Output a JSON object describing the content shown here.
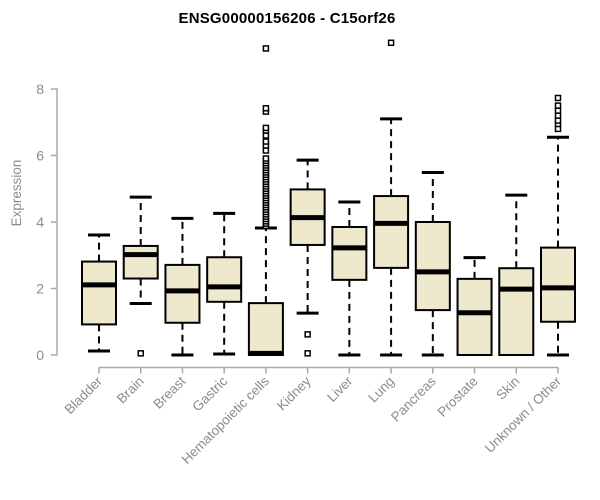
{
  "chart_data": {
    "type": "boxplot",
    "title": "ENSG00000156206 - C15orf26",
    "xlabel": "",
    "ylabel": "Expression",
    "ylim": [
      0,
      9.6
    ],
    "yticks": [
      0,
      2,
      4,
      6,
      8
    ],
    "grid": false,
    "legend": "none",
    "categories": [
      "Bladder",
      "Brain",
      "Breast",
      "Gastric",
      "Hematopoietic cells",
      "Kidney",
      "Liver",
      "Lung",
      "Pancreas",
      "Prostate",
      "Skin",
      "Unknown / Other"
    ],
    "series": [
      {
        "name": "Bladder",
        "whisker_low": 0.12,
        "q1": 0.92,
        "median": 2.11,
        "q3": 2.81,
        "whisker_high": 3.61,
        "outliers": []
      },
      {
        "name": "Brain",
        "whisker_low": 1.55,
        "q1": 2.3,
        "median": 3.02,
        "q3": 3.28,
        "whisker_high": 4.75,
        "outliers": [
          0.05
        ]
      },
      {
        "name": "Breast",
        "whisker_low": 0.0,
        "q1": 0.97,
        "median": 1.93,
        "q3": 2.71,
        "whisker_high": 4.11,
        "outliers": []
      },
      {
        "name": "Gastric",
        "whisker_low": 0.03,
        "q1": 1.6,
        "median": 2.05,
        "q3": 2.94,
        "whisker_high": 4.26,
        "outliers": []
      },
      {
        "name": "Hematopoietic cells",
        "whisker_low": 0.0,
        "q1": 0.0,
        "median": 0.05,
        "q3": 1.56,
        "whisker_high": 3.82,
        "outliers": [
          3.88,
          3.95,
          4.02,
          4.09,
          4.16,
          4.23,
          4.3,
          4.37,
          4.44,
          4.51,
          4.58,
          4.65,
          4.72,
          4.79,
          4.86,
          4.93,
          5.0,
          5.07,
          5.14,
          5.21,
          5.28,
          5.35,
          5.42,
          5.49,
          5.56,
          5.63,
          5.7,
          5.77,
          5.84,
          5.91,
          6.15,
          6.3,
          6.42,
          6.6,
          6.75,
          6.83,
          7.32,
          7.42,
          9.22
        ]
      },
      {
        "name": "Kidney",
        "whisker_low": 1.26,
        "q1": 3.31,
        "median": 4.13,
        "q3": 4.98,
        "whisker_high": 5.86,
        "outliers": [
          0.62,
          0.05
        ]
      },
      {
        "name": "Liver",
        "whisker_low": 0.0,
        "q1": 2.26,
        "median": 3.22,
        "q3": 3.85,
        "whisker_high": 4.6,
        "outliers": []
      },
      {
        "name": "Lung",
        "whisker_low": 0.0,
        "q1": 2.62,
        "median": 3.96,
        "q3": 4.78,
        "whisker_high": 7.1,
        "outliers": [
          9.39
        ]
      },
      {
        "name": "Pancreas",
        "whisker_low": 0.0,
        "q1": 1.35,
        "median": 2.5,
        "q3": 4.0,
        "whisker_high": 5.49,
        "outliers": []
      },
      {
        "name": "Prostate",
        "whisker_low": 0.0,
        "q1": 0.0,
        "median": 1.27,
        "q3": 2.29,
        "whisker_high": 2.93,
        "outliers": []
      },
      {
        "name": "Skin",
        "whisker_low": 0.0,
        "q1": 0.0,
        "median": 1.98,
        "q3": 2.61,
        "whisker_high": 4.81,
        "outliers": []
      },
      {
        "name": "Unknown / Other",
        "whisker_low": 0.0,
        "q1": 1.0,
        "median": 2.02,
        "q3": 3.23,
        "whisker_high": 6.55,
        "outliers": [
          6.8,
          6.95,
          7.05,
          7.2,
          7.35,
          7.5,
          7.73
        ]
      }
    ],
    "colors": {
      "box_fill": "#EEE8CD",
      "box_border": "#000000",
      "median": "#000000",
      "whisker": "#000000",
      "outlier": "#000000",
      "axis_line": "#A8A8A8",
      "tick_label": "#8C8C8C",
      "title": "#000000"
    }
  }
}
